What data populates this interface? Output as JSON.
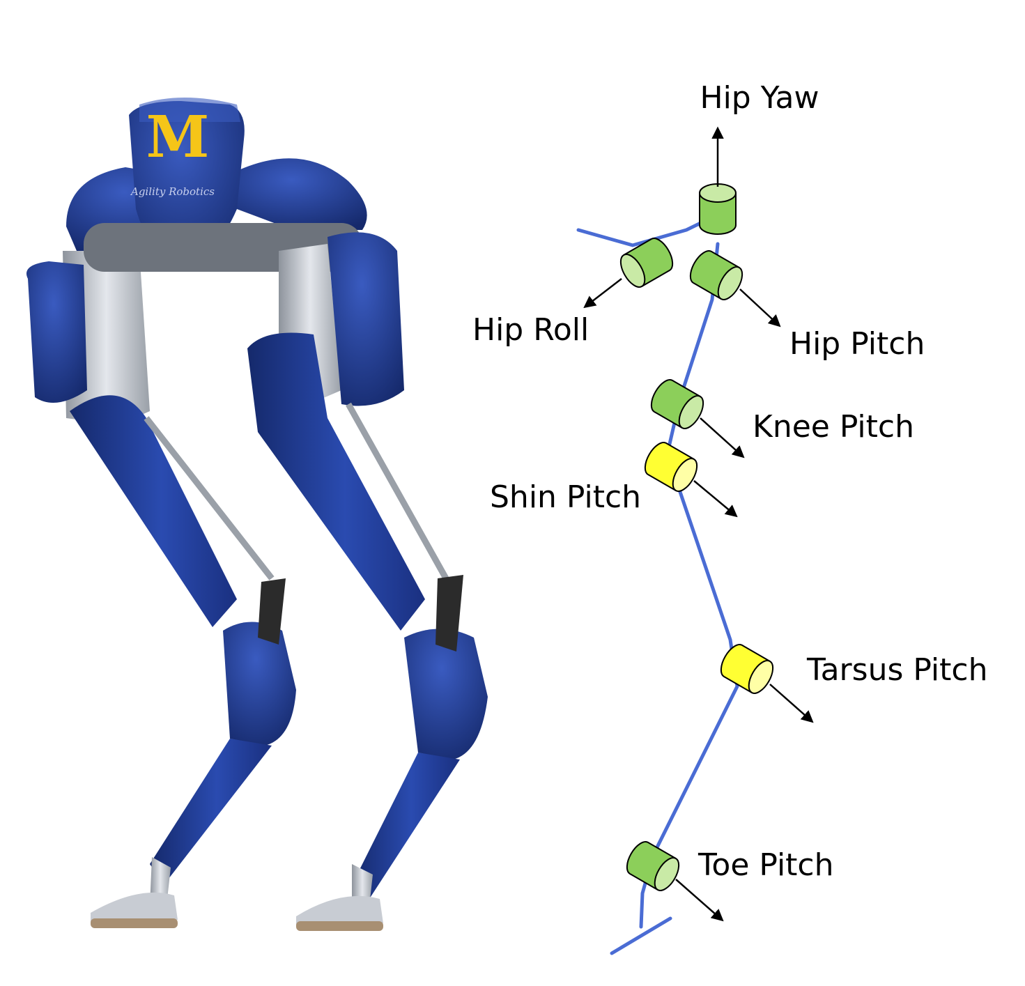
{
  "robot": {
    "logo_text": "M",
    "brand_text": "Agility Robotics",
    "colors": {
      "body": "#1f3a8a",
      "body_dark": "#15296b",
      "body_highlight": "#3a5bc0",
      "metal": "#c8ccd3",
      "metal_dark": "#8d939c",
      "logo": "#f5c518",
      "sole": "#a88f72"
    }
  },
  "diagram": {
    "colors": {
      "link": "#4a6cd4",
      "actuated_joint": "#8ccf5a",
      "actuated_joint_end": "#c9eaa6",
      "passive_joint": "#ffff33",
      "passive_joint_end": "#ffffa6",
      "outline": "#000000"
    },
    "joints": [
      {
        "id": "hip-yaw",
        "label": "Hip Yaw",
        "type": "actuated"
      },
      {
        "id": "hip-roll",
        "label": "Hip Roll",
        "type": "actuated"
      },
      {
        "id": "hip-pitch",
        "label": "Hip Pitch",
        "type": "actuated"
      },
      {
        "id": "knee-pitch",
        "label": "Knee Pitch",
        "type": "actuated"
      },
      {
        "id": "shin-pitch",
        "label": "Shin Pitch",
        "type": "passive"
      },
      {
        "id": "tarsus-pitch",
        "label": "Tarsus Pitch",
        "type": "passive"
      },
      {
        "id": "toe-pitch",
        "label": "Toe Pitch",
        "type": "actuated"
      }
    ]
  }
}
